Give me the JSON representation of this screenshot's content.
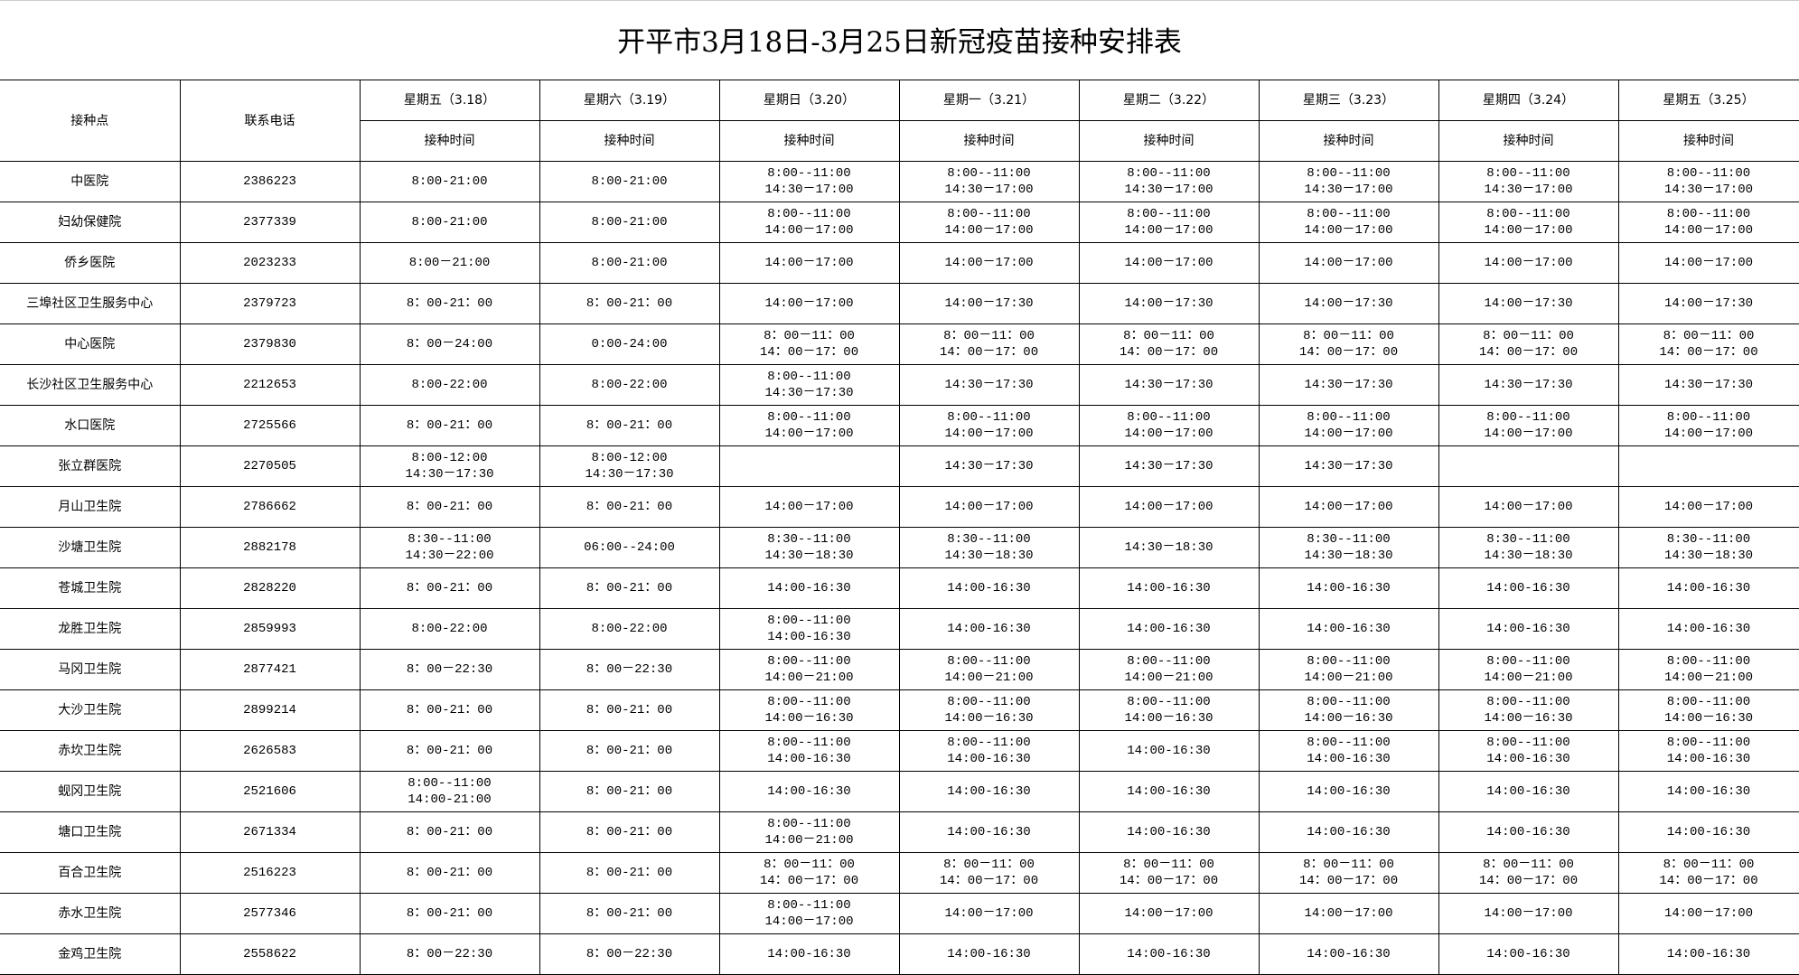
{
  "title": "开平市3月18日-3月25日新冠疫苗接种安排表",
  "headers": {
    "site": "接种点",
    "phone": "联系电话",
    "sub": "接种时间",
    "days": [
      "星期五（3.18）",
      "星期六（3.19）",
      "星期日（3.20）",
      "星期一（3.21）",
      "星期二（3.22）",
      "星期三（3.23）",
      "星期四（3.24）",
      "星期五（3.25）"
    ]
  },
  "rows": [
    {
      "site": "中医院",
      "phone": "2386223",
      "times": [
        "8:00-21:00",
        "8:00-21:00",
        "8:00--11:00\n14:30－17:00",
        "8:00--11:00\n14:30－17:00",
        "8:00--11:00\n14:30－17:00",
        "8:00--11:00\n14:30－17:00",
        "8:00--11:00\n14:30－17:00",
        "8:00--11:00\n14:30－17:00"
      ]
    },
    {
      "site": "妇幼保健院",
      "phone": "2377339",
      "times": [
        "8:00-21:00",
        "8:00-21:00",
        "8:00--11:00\n14:00－17:00",
        "8:00--11:00\n14:00－17:00",
        "8:00--11:00\n14:00－17:00",
        "8:00--11:00\n14:00－17:00",
        "8:00--11:00\n14:00－17:00",
        "8:00--11:00\n14:00－17:00"
      ]
    },
    {
      "site": "侨乡医院",
      "phone": "2023233",
      "times": [
        "8:00－21:00",
        "8:00-21:00",
        "14:00－17:00",
        "14:00－17:00",
        "14:00－17:00",
        "14:00－17:00",
        "14:00－17:00",
        "14:00－17:00"
      ]
    },
    {
      "site": "三埠社区卫生服务中心",
      "phone": "2379723",
      "times": [
        "8：00-21：00",
        "8：00-21：00",
        "14:00－17:00",
        "14:00－17:30",
        "14:00－17:30",
        "14:00－17:30",
        "14:00－17:30",
        "14:00－17:30"
      ]
    },
    {
      "site": "中心医院",
      "phone": "2379830",
      "times": [
        "8：00－24:00",
        "0:00-24:00",
        "8：00－11：00\n14：00－17：00",
        "8：00－11：00\n14：00－17：00",
        "8：00－11：00\n14：00－17：00",
        "8：00－11：00\n14：00－17：00",
        "8：00－11：00\n14：00－17：00",
        "8：00－11：00\n14：00－17：00"
      ]
    },
    {
      "site": "长沙社区卫生服务中心",
      "phone": "2212653",
      "times": [
        "8:00-22:00",
        "8:00-22:00",
        "8:00--11:00\n14:30－17:30",
        "14:30－17:30",
        "14:30－17:30",
        "14:30－17:30",
        "14:30－17:30",
        "14:30－17:30"
      ]
    },
    {
      "site": "水口医院",
      "phone": "2725566",
      "times": [
        "8：00-21：00",
        "8：00-21：00",
        "8:00--11:00\n14:00－17:00",
        "8:00--11:00\n14:00－17:00",
        "8:00--11:00\n14:00－17:00",
        "8:00--11:00\n14:00－17:00",
        "8:00--11:00\n14:00－17:00",
        "8:00--11:00\n14:00－17:00"
      ]
    },
    {
      "site": "张立群医院",
      "phone": "2270505",
      "times": [
        "8:00-12:00\n14:30－17:30",
        "8:00-12:00\n14:30－17:30",
        "",
        "14:30－17:30",
        "14:30－17:30",
        "14:30－17:30",
        "",
        ""
      ]
    },
    {
      "site": "月山卫生院",
      "phone": "2786662",
      "times": [
        "8：00-21：00",
        "8：00-21：00",
        "14:00－17:00",
        "14:00－17:00",
        "14:00－17:00",
        "14:00－17:00",
        "14:00－17:00",
        "14:00－17:00"
      ]
    },
    {
      "site": "沙塘卫生院",
      "phone": "2882178",
      "times": [
        "8:30--11:00\n14:30－22:00",
        "06:00--24:00",
        "8:30--11:00\n14:30－18:30",
        "8:30--11:00\n14:30－18:30",
        "14:30－18:30",
        "8:30--11:00\n14:30－18:30",
        "8:30--11:00\n14:30－18:30",
        "8:30--11:00\n14:30－18:30"
      ]
    },
    {
      "site": "苍城卫生院",
      "phone": "2828220",
      "times": [
        "8：00-21：00",
        "8：00-21：00",
        "14:00-16:30",
        "14:00-16:30",
        "14:00-16:30",
        "14:00-16:30",
        "14:00-16:30",
        "14:00-16:30"
      ]
    },
    {
      "site": "龙胜卫生院",
      "phone": "2859993",
      "times": [
        "8:00-22:00",
        "8:00-22:00",
        "8:00--11:00\n14:00-16:30",
        "14:00-16:30",
        "14:00-16:30",
        "14:00-16:30",
        "14:00-16:30",
        "14:00-16:30"
      ]
    },
    {
      "site": "马冈卫生院",
      "phone": "2877421",
      "times": [
        "8：00－22:30",
        "8：00－22:30",
        "8:00--11:00\n14:00－21:00",
        "8:00--11:00\n14:00－21:00",
        "8:00--11:00\n14:00－21:00",
        "8:00--11:00\n14:00－21:00",
        "8:00--11:00\n14:00－21:00",
        "8:00--11:00\n14:00－21:00"
      ]
    },
    {
      "site": "大沙卫生院",
      "phone": "2899214",
      "times": [
        "8：00-21：00",
        "8：00-21：00",
        "8:00--11:00\n14:00－16:30",
        "8:00--11:00\n14:00－16:30",
        "8:00--11:00\n14:00－16:30",
        "8:00--11:00\n14:00－16:30",
        "8:00--11:00\n14:00－16:30",
        "8:00--11:00\n14:00－16:30"
      ]
    },
    {
      "site": "赤坎卫生院",
      "phone": "2626583",
      "times": [
        "8：00-21：00",
        "8：00-21：00",
        "8:00--11:00\n14:00-16:30",
        "8:00--11:00\n14:00-16:30",
        "14:00-16:30",
        "8:00--11:00\n14:00-16:30",
        "8:00--11:00\n14:00-16:30",
        "8:00--11:00\n14:00-16:30"
      ]
    },
    {
      "site": "蚬冈卫生院",
      "phone": "2521606",
      "times": [
        "8:00--11:00\n14:00-21:00",
        "8：00-21：00",
        "14:00-16:30",
        "14:00-16:30",
        "14:00-16:30",
        "14:00-16:30",
        "14:00-16:30",
        "14:00-16:30"
      ]
    },
    {
      "site": "塘口卫生院",
      "phone": "2671334",
      "times": [
        "8：00-21：00",
        "8：00-21：00",
        "8:00--11:00\n14:00－21:00",
        "14:00-16:30",
        "14:00-16:30",
        "14:00-16:30",
        "14:00-16:30",
        "14:00-16:30"
      ]
    },
    {
      "site": "百合卫生院",
      "phone": "2516223",
      "times": [
        "8：00-21：00",
        "8：00-21：00",
        "8：00－11：00\n14：00－17：00",
        "8：00－11：00\n14：00－17：00",
        "8：00－11：00\n14：00－17：00",
        "8：00－11：00\n14：00－17：00",
        "8：00－11：00\n14：00－17：00",
        "8：00－11：00\n14：00－17：00"
      ]
    },
    {
      "site": "赤水卫生院",
      "phone": "2577346",
      "times": [
        "8：00-21：00",
        "8：00-21：00",
        "8:00--11:00\n14:00－17:00",
        "14:00－17:00",
        "14:00－17:00",
        "14:00－17:00",
        "14:00－17:00",
        "14:00－17:00"
      ]
    },
    {
      "site": "金鸡卫生院",
      "phone": "2558622",
      "times": [
        "8：00－22:30",
        "8：00－22:30",
        "14:00-16:30",
        "14:00-16:30",
        "14:00-16:30",
        "14:00-16:30",
        "14:00-16:30",
        "14:00-16:30"
      ]
    }
  ]
}
